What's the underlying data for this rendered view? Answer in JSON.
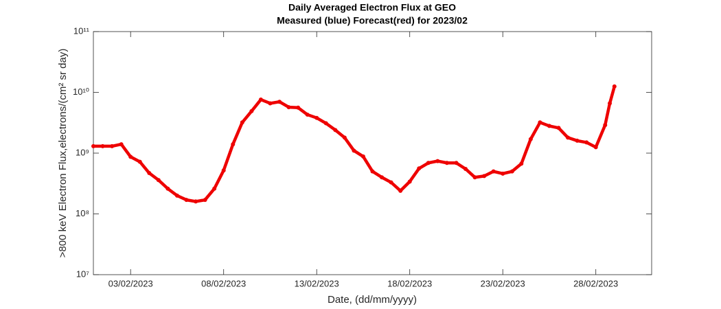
{
  "chart_data": {
    "type": "line",
    "title": "Daily Averaged Electron Flux at GEO",
    "subtitle": "Measured (blue) Forecast(red) for 2023/02",
    "x_label": "Date, (dd/mm/yyyy)",
    "y_label": ">800 keV Electron Flux,electrons/(cm² sr day)",
    "log_y": true,
    "xlim": [
      "2023-02-01T00:00",
      "2023-03-03T00:00"
    ],
    "xticks": [
      {
        "value": "2023-02-03T00:00",
        "label": "03/02/2023"
      },
      {
        "value": "2023-02-08T00:00",
        "label": "08/02/2023"
      },
      {
        "value": "2023-02-13T00:00",
        "label": "13/02/2023"
      },
      {
        "value": "2023-02-18T00:00",
        "label": "18/02/2023"
      },
      {
        "value": "2023-02-23T00:00",
        "label": "23/02/2023"
      },
      {
        "value": "2023-02-28T00:00",
        "label": "28/02/2023"
      }
    ],
    "ylim": [
      10000000,
      100000000000
    ],
    "yticks": [
      {
        "value": 10000000,
        "label": "10⁷"
      },
      {
        "value": 100000000,
        "label": "10⁸"
      },
      {
        "value": 1000000000,
        "label": "10⁹"
      },
      {
        "value": 10000000000,
        "label": "10¹⁰"
      },
      {
        "value": 100000000000,
        "label": "10¹¹"
      }
    ],
    "x": [
      "2023-02-01T00:00",
      "2023-02-01T12:00",
      "2023-02-02T00:00",
      "2023-02-02T12:00",
      "2023-02-03T00:00",
      "2023-02-03T12:00",
      "2023-02-04T00:00",
      "2023-02-04T12:00",
      "2023-02-05T00:00",
      "2023-02-05T12:00",
      "2023-02-06T00:00",
      "2023-02-06T12:00",
      "2023-02-07T00:00",
      "2023-02-07T12:00",
      "2023-02-08T00:00",
      "2023-02-08T12:00",
      "2023-02-09T00:00",
      "2023-02-09T12:00",
      "2023-02-10T00:00",
      "2023-02-10T12:00",
      "2023-02-11T00:00",
      "2023-02-11T12:00",
      "2023-02-12T00:00",
      "2023-02-12T12:00",
      "2023-02-13T00:00",
      "2023-02-13T12:00",
      "2023-02-14T00:00",
      "2023-02-14T12:00",
      "2023-02-15T00:00",
      "2023-02-15T12:00",
      "2023-02-16T00:00",
      "2023-02-16T12:00",
      "2023-02-17T00:00",
      "2023-02-17T12:00",
      "2023-02-18T00:00",
      "2023-02-18T12:00",
      "2023-02-19T00:00",
      "2023-02-19T12:00",
      "2023-02-20T00:00",
      "2023-02-20T12:00",
      "2023-02-21T00:00",
      "2023-02-21T12:00",
      "2023-02-22T00:00",
      "2023-02-22T12:00",
      "2023-02-23T00:00",
      "2023-02-23T12:00",
      "2023-02-24T00:00",
      "2023-02-24T12:00",
      "2023-02-25T00:00",
      "2023-02-25T12:00",
      "2023-02-26T00:00",
      "2023-02-26T12:00",
      "2023-02-27T00:00",
      "2023-02-27T12:00",
      "2023-02-28T00:00",
      "2023-02-28T12:00",
      "2023-02-28T18:00",
      "2023-03-01T00:00"
    ],
    "series": [
      {
        "name": "Forecast",
        "color": "#ee0000",
        "values": [
          1300000000,
          1300000000,
          1300000000,
          1400000000,
          870000000,
          720000000,
          470000000,
          360000000,
          260000000,
          200000000,
          170000000,
          160000000,
          170000000,
          260000000,
          520000000,
          1400000000,
          3200000000,
          4900000000,
          7600000000,
          6600000000,
          7000000000,
          5700000000,
          5600000000,
          4300000000,
          3800000000,
          3100000000,
          2400000000,
          1800000000,
          1100000000,
          880000000,
          500000000,
          400000000,
          330000000,
          240000000,
          340000000,
          560000000,
          690000000,
          740000000,
          690000000,
          690000000,
          550000000,
          400000000,
          420000000,
          500000000,
          460000000,
          500000000,
          670000000,
          1700000000,
          3200000000,
          2800000000,
          2600000000,
          1800000000,
          1600000000,
          1500000000,
          1250000000,
          2900000000,
          6600000000,
          12500000000
        ]
      }
    ]
  }
}
